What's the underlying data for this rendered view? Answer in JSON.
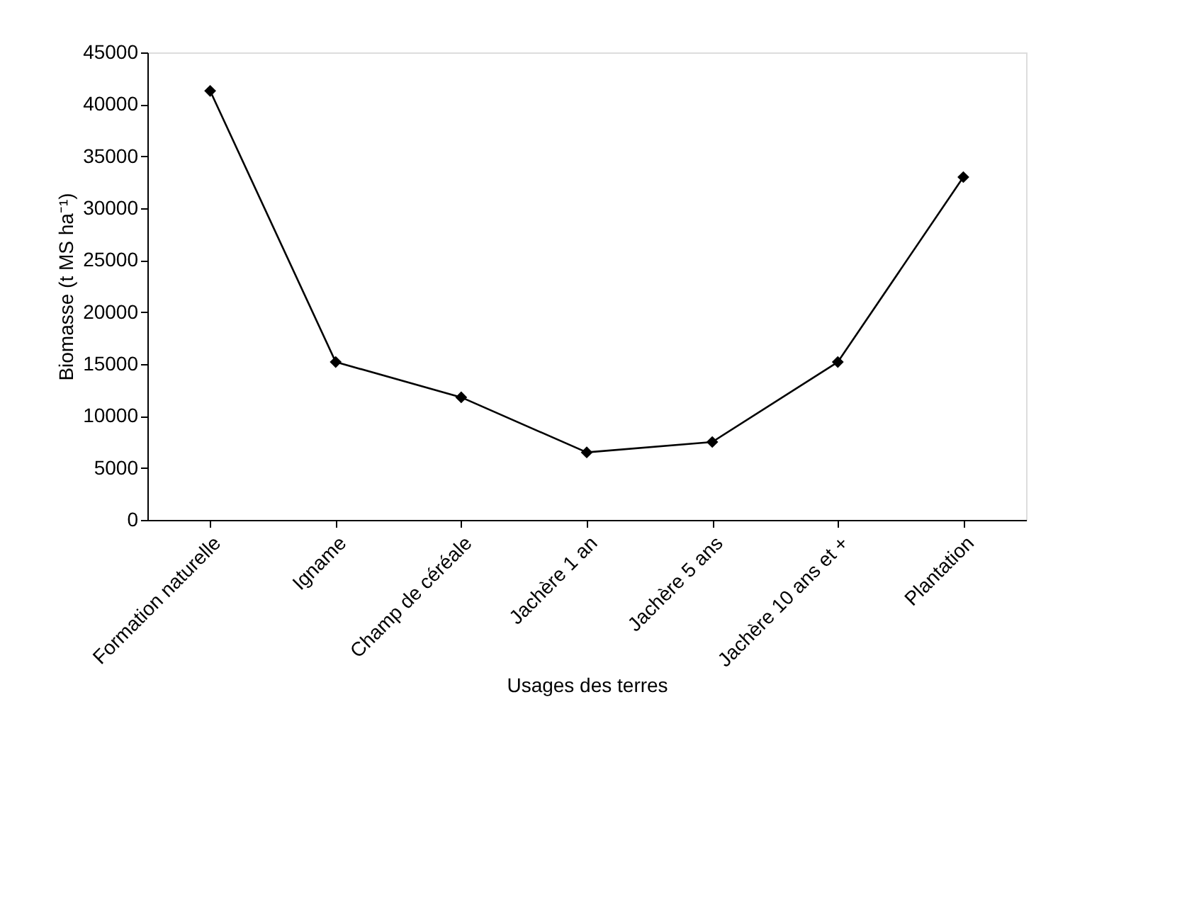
{
  "chart_data": {
    "type": "line",
    "categories": [
      "Formation naturelle",
      "Igname",
      "Champ de céréale",
      "Jachère 1 an",
      "Jachère 5 ans",
      "Jachère 10 ans et +",
      "Plantation"
    ],
    "series": [
      {
        "color": "#000000",
        "values": [
          41300,
          15200,
          11800,
          6500,
          7500,
          15200,
          33000
        ]
      }
    ],
    "xlabel": "Usages des terres",
    "ylabel": "Biomasse (t MS ha⁻¹)",
    "ylim": [
      0,
      45000
    ],
    "yticks": [
      0,
      5000,
      10000,
      15000,
      20000,
      25000,
      30000,
      35000,
      40000,
      45000
    ],
    "marker": "diamond",
    "line_style": "solid",
    "grid": false
  }
}
